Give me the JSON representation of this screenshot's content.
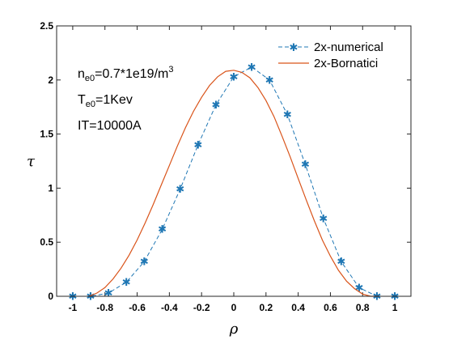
{
  "chart_data": {
    "type": "line",
    "title": "",
    "xlabel": "ρ",
    "ylabel": "τ",
    "xlim": [
      -1.1,
      1.1
    ],
    "ylim": [
      0,
      2.5
    ],
    "xticks": [
      "-1",
      "-0.8",
      "-0.6",
      "-0.4",
      "-0.2",
      "0",
      "0.2",
      "0.4",
      "0.6",
      "0.8",
      "1"
    ],
    "yticks": [
      "0",
      "0.5",
      "1",
      "1.5",
      "2",
      "2.5"
    ],
    "grid": false,
    "legend_position": "top-right",
    "annotations": {
      "line1": {
        "main": "n",
        "sub": "e0",
        "rest": "=0.7*1e19/m",
        "sup": "3"
      },
      "line2": {
        "main": "T",
        "sub": "e0",
        "rest": "=1Kev"
      },
      "line3": {
        "main": "IT=10000A"
      }
    },
    "series": [
      {
        "name": "2x-numerical",
        "style": "dashed-star",
        "color": "#1f77b4",
        "x": [
          -1.0,
          -0.889,
          -0.778,
          -0.667,
          -0.556,
          -0.444,
          -0.333,
          -0.222,
          -0.111,
          0.0,
          0.111,
          0.222,
          0.333,
          0.444,
          0.556,
          0.667,
          0.778,
          0.889,
          1.0
        ],
        "y": [
          0.0,
          0.0,
          0.03,
          0.13,
          0.32,
          0.62,
          0.99,
          1.4,
          1.77,
          2.03,
          2.12,
          2.0,
          1.68,
          1.22,
          0.72,
          0.32,
          0.08,
          0.0,
          0.0
        ]
      },
      {
        "name": "2x-Bornatici",
        "style": "solid",
        "color": "#d95319",
        "x": [
          -0.9,
          -0.85,
          -0.8,
          -0.75,
          -0.7,
          -0.65,
          -0.6,
          -0.55,
          -0.5,
          -0.45,
          -0.4,
          -0.35,
          -0.3,
          -0.25,
          -0.2,
          -0.15,
          -0.1,
          -0.05,
          0.0,
          0.05,
          0.1,
          0.15,
          0.2,
          0.25,
          0.3,
          0.35,
          0.4,
          0.45,
          0.5,
          0.55,
          0.6,
          0.65,
          0.7,
          0.75,
          0.8,
          0.85,
          0.9
        ],
        "y": [
          0.0,
          0.03,
          0.08,
          0.16,
          0.26,
          0.38,
          0.52,
          0.68,
          0.85,
          1.03,
          1.21,
          1.39,
          1.56,
          1.71,
          1.84,
          1.95,
          2.03,
          2.08,
          2.09,
          2.07,
          2.02,
          1.93,
          1.81,
          1.66,
          1.48,
          1.29,
          1.09,
          0.89,
          0.7,
          0.52,
          0.37,
          0.24,
          0.14,
          0.07,
          0.02,
          0.0,
          0.0
        ]
      }
    ]
  }
}
